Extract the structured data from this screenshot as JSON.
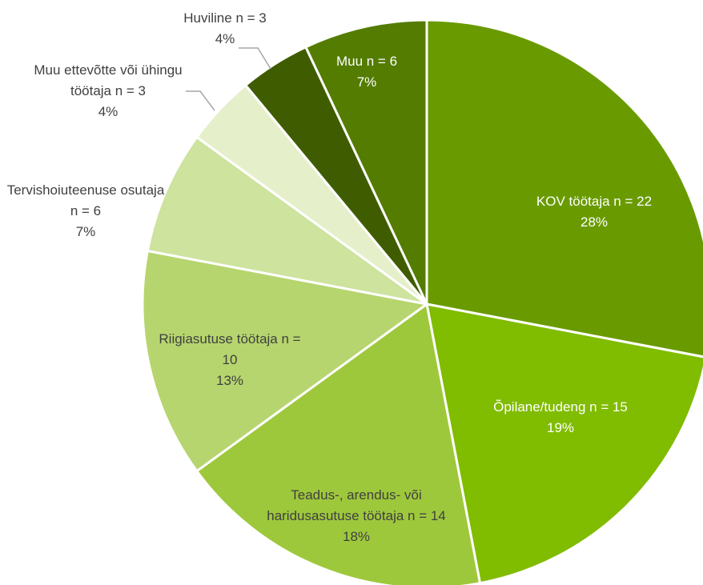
{
  "chart_data": {
    "type": "pie",
    "categories": [
      "KOV töötaja n = 22",
      "Õpilane/tudeng n = 15",
      "Teadus-, arendus- või haridusasutuse töötaja n = 14",
      "Riigiasutuse töötaja n = 10",
      "Tervishoiuteenuse osutaja n = 6",
      "Muu ettevõtte või ühingu töötaja n = 3",
      "Huviline n = 3",
      "Muu n = 6"
    ],
    "values": [
      28,
      19,
      18,
      13,
      7,
      4,
      4,
      7
    ],
    "value_labels": [
      "28%",
      "19%",
      "18%",
      "13%",
      "7%",
      "4%",
      "4%",
      "7%"
    ],
    "colors": [
      "#699b00",
      "#80bc00",
      "#9ec83c",
      "#b6d56e",
      "#cde39e",
      "#e5f0cb",
      "#3f5d00",
      "#537c00"
    ]
  }
}
